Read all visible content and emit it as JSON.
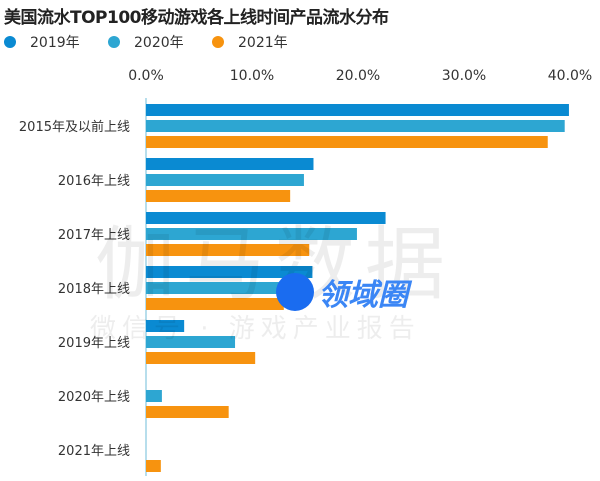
{
  "chart_data": {
    "type": "bar",
    "orientation": "horizontal",
    "title": "美国流水TOP100移动游戏各上线时间产品流水分布",
    "categories": [
      "2015年及以前上线",
      "2016年上线",
      "2017年上线",
      "2018年上线",
      "2019年上线",
      "2020年上线",
      "2021年上线"
    ],
    "series": [
      {
        "name": "2019年",
        "color": "#0a8ad2",
        "values": [
          39.9,
          15.8,
          22.6,
          15.7,
          3.6,
          0,
          0
        ]
      },
      {
        "name": "2020年",
        "color": "#2da6d2",
        "values": [
          39.5,
          14.9,
          19.9,
          14.0,
          8.4,
          1.5,
          0
        ]
      },
      {
        "name": "2021年",
        "color": "#f7930f",
        "values": [
          37.9,
          13.6,
          15.4,
          13.0,
          10.3,
          7.8,
          1.4
        ]
      }
    ],
    "xlim": [
      0,
      40
    ],
    "xticks": [
      "0.0%",
      "10.0%",
      "20.0%",
      "30.0%",
      "40.0%"
    ],
    "xlabel": "",
    "ylabel": "",
    "legend_position": "top-left",
    "grid": false
  },
  "watermark": {
    "main": "伽马数据",
    "sub": "微信号 · 游戏产业报告",
    "logo": "领域圈"
  }
}
